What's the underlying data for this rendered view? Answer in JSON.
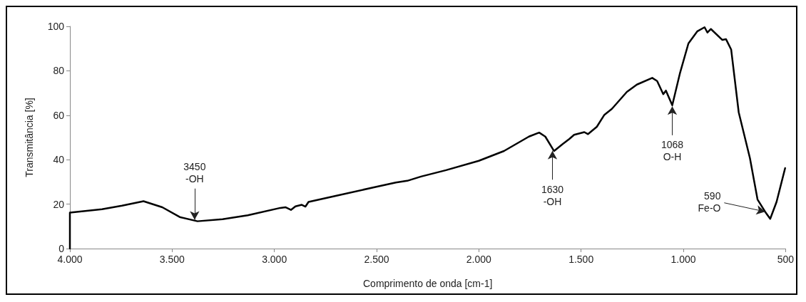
{
  "chart_data": {
    "type": "line",
    "xlabel": "Comprimento de onda [cm-1]",
    "ylabel": "Transmitância [%]",
    "xlim": [
      4000,
      500
    ],
    "ylim": [
      0,
      100
    ],
    "xticks": [
      {
        "value": 4000,
        "label": "4.000"
      },
      {
        "value": 3500,
        "label": "3.500"
      },
      {
        "value": 3000,
        "label": "3.000"
      },
      {
        "value": 2500,
        "label": "2.500"
      },
      {
        "value": 2000,
        "label": "2.000"
      },
      {
        "value": 1500,
        "label": "1.500"
      },
      {
        "value": 1000,
        "label": "1.000"
      },
      500
    ],
    "yticks": [
      0,
      20,
      40,
      60,
      80,
      100
    ],
    "grid": false,
    "marker": "none",
    "line_style": "solid",
    "series": [
      {
        "color": "#000000",
        "x": [
          4000,
          4000,
          3843,
          3745,
          3640,
          3548,
          3463,
          3376,
          3253,
          3130,
          2971,
          2946,
          2919,
          2897,
          2866,
          2848,
          2833,
          2700,
          2517,
          2406,
          2350,
          2283,
          2160,
          2000,
          1877,
          1755,
          1705,
          1675,
          1632,
          1589,
          1558,
          1534,
          1484,
          1466,
          1423,
          1386,
          1349,
          1276,
          1227,
          1152,
          1128,
          1098,
          1085,
          1054,
          1017,
          975,
          931,
          896,
          882,
          865,
          809,
          791,
          766,
          729,
          674,
          637,
          600,
          575,
          544,
          502
        ],
        "values": [
          0,
          16.2,
          17.7,
          19.3,
          21.3,
          18.6,
          14.2,
          12.3,
          13.2,
          15.0,
          18.3,
          18.6,
          17.4,
          19.0,
          19.7,
          18.9,
          21.0,
          23.7,
          27.5,
          29.7,
          30.5,
          32.4,
          35.3,
          39.5,
          43.9,
          50.4,
          52.2,
          50.4,
          43.9,
          47.1,
          49.3,
          51.2,
          52.4,
          51.5,
          54.8,
          60.2,
          62.9,
          70.5,
          73.8,
          76.8,
          75.4,
          69.5,
          71.1,
          64.5,
          78.7,
          92.3,
          97.8,
          99.6,
          97.2,
          98.8,
          93.9,
          94.2,
          89.6,
          61.3,
          40.6,
          22.1,
          16.6,
          13.4,
          21.0,
          36.2
        ]
      }
    ],
    "annotations": [
      {
        "text": "3450\n-OH",
        "x": 3390,
        "y": 13
      },
      {
        "text": "1630\n-OH",
        "x": 1640,
        "y": 44
      },
      {
        "text": "1068\nO-H",
        "x": 1054,
        "y": 64
      },
      {
        "text": "590\nFe-O",
        "x": 600,
        "y": 16.6
      }
    ]
  }
}
